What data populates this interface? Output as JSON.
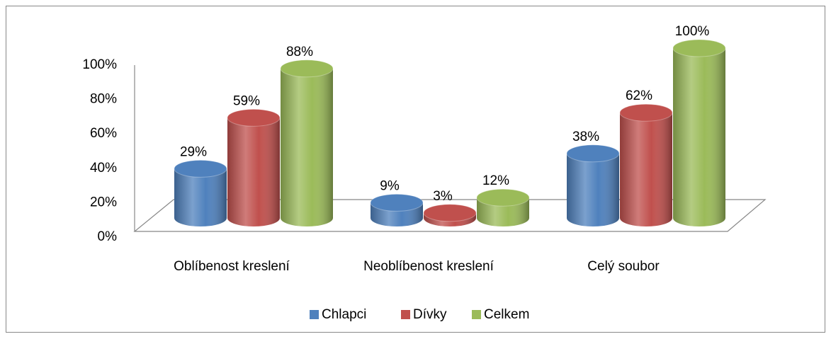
{
  "chart_data": {
    "type": "bar",
    "categories": [
      "Oblíbenost kreslení",
      "Neoblíbenost kreslení",
      "Celý soubor"
    ],
    "series": [
      {
        "name": "Chlapci",
        "color": "#4f81bd",
        "values": [
          29,
          9,
          38
        ],
        "value_labels": [
          "29%",
          "9%",
          "38%"
        ]
      },
      {
        "name": "Dívky",
        "color": "#c0504d",
        "values": [
          59,
          3,
          62
        ],
        "value_labels": [
          "59%",
          "3%",
          "62%"
        ]
      },
      {
        "name": "Celkem",
        "color": "#9bbb59",
        "values": [
          88,
          12,
          100
        ],
        "value_labels": [
          "88%",
          "12%",
          "100%"
        ]
      }
    ],
    "ylim": [
      0,
      100
    ],
    "yticks": [
      {
        "value": 0,
        "label": "0%"
      },
      {
        "value": 20,
        "label": "20%"
      },
      {
        "value": 40,
        "label": "40%"
      },
      {
        "value": 60,
        "label": "60%"
      },
      {
        "value": 80,
        "label": "80%"
      },
      {
        "value": 100,
        "label": "100%"
      }
    ],
    "legend": "bottom"
  }
}
